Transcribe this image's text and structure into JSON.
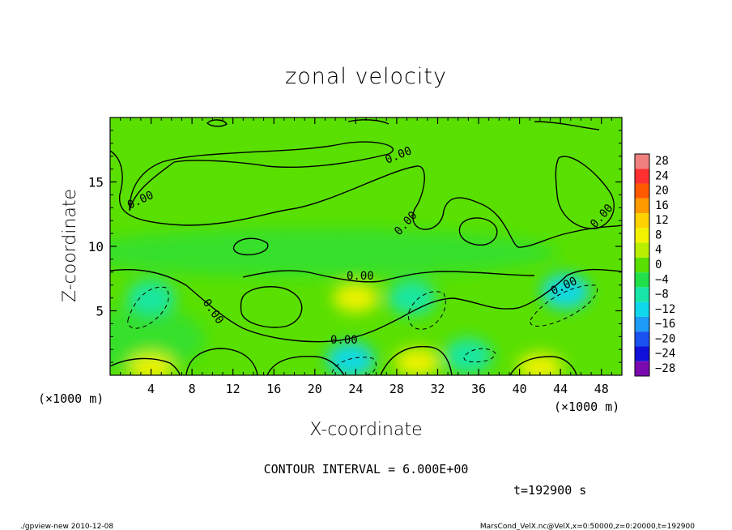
{
  "chart_data": {
    "type": "heatmap",
    "title": "zonal velocity",
    "xlabel": "X-coordinate",
    "ylabel": "Z-coordinate",
    "x_unit": "(×1000 m)",
    "y_unit": "(×1000 m)",
    "xlim": [
      0,
      50
    ],
    "ylim": [
      0,
      20
    ],
    "x_ticks": [
      "4",
      "8",
      "12",
      "16",
      "20",
      "24",
      "28",
      "32",
      "36",
      "40",
      "44",
      "48"
    ],
    "y_ticks": [
      "5",
      "10",
      "15"
    ],
    "contour_interval_text": "CONTOUR INTERVAL = 6.000E+00",
    "time_text": "t=192900 s",
    "contour_labels": [
      "0.00",
      "0.00",
      "0.00",
      "0.00",
      "0.00",
      "0.00",
      "0.00",
      "0.00"
    ],
    "colorbar": {
      "labels": [
        "28",
        "24",
        "20",
        "16",
        "12",
        "8",
        "4",
        "0",
        "−4",
        "−8",
        "−12",
        "−16",
        "−20",
        "−24",
        "−28"
      ],
      "colors": [
        "#f08080",
        "#ff3030",
        "#ff5a00",
        "#ff9a00",
        "#ffd200",
        "#f2f200",
        "#b8ee00",
        "#5ae000",
        "#22e04a",
        "#18e6a8",
        "#10d8ec",
        "#1c9cf6",
        "#1a52f0",
        "#1010d8",
        "#7a0ab0"
      ]
    },
    "features": [
      {
        "label": "positive",
        "x": 24,
        "z": 6,
        "value": 9
      },
      {
        "label": "positive",
        "x": 30,
        "z": 1,
        "value": 10
      },
      {
        "label": "positive",
        "x": 42,
        "z": 0.6,
        "value": 10
      },
      {
        "label": "positive",
        "x": 4,
        "z": 0.6,
        "value": 8
      },
      {
        "label": "negative",
        "x": 4,
        "z": 6,
        "value": -9
      },
      {
        "label": "negative",
        "x": 29.5,
        "z": 6,
        "value": -9
      },
      {
        "label": "negative",
        "x": 44.5,
        "z": 6.5,
        "value": -10
      },
      {
        "label": "negative",
        "x": 23.5,
        "z": 1.2,
        "value": -12
      },
      {
        "label": "negative",
        "x": 35,
        "z": 1.5,
        "value": -8
      }
    ]
  },
  "footer": {
    "left": "./gpview-new   2010-12-08",
    "right": "MarsCond_VelX.nc@VelX,x=0:50000,z=0:20000,t=192900"
  }
}
